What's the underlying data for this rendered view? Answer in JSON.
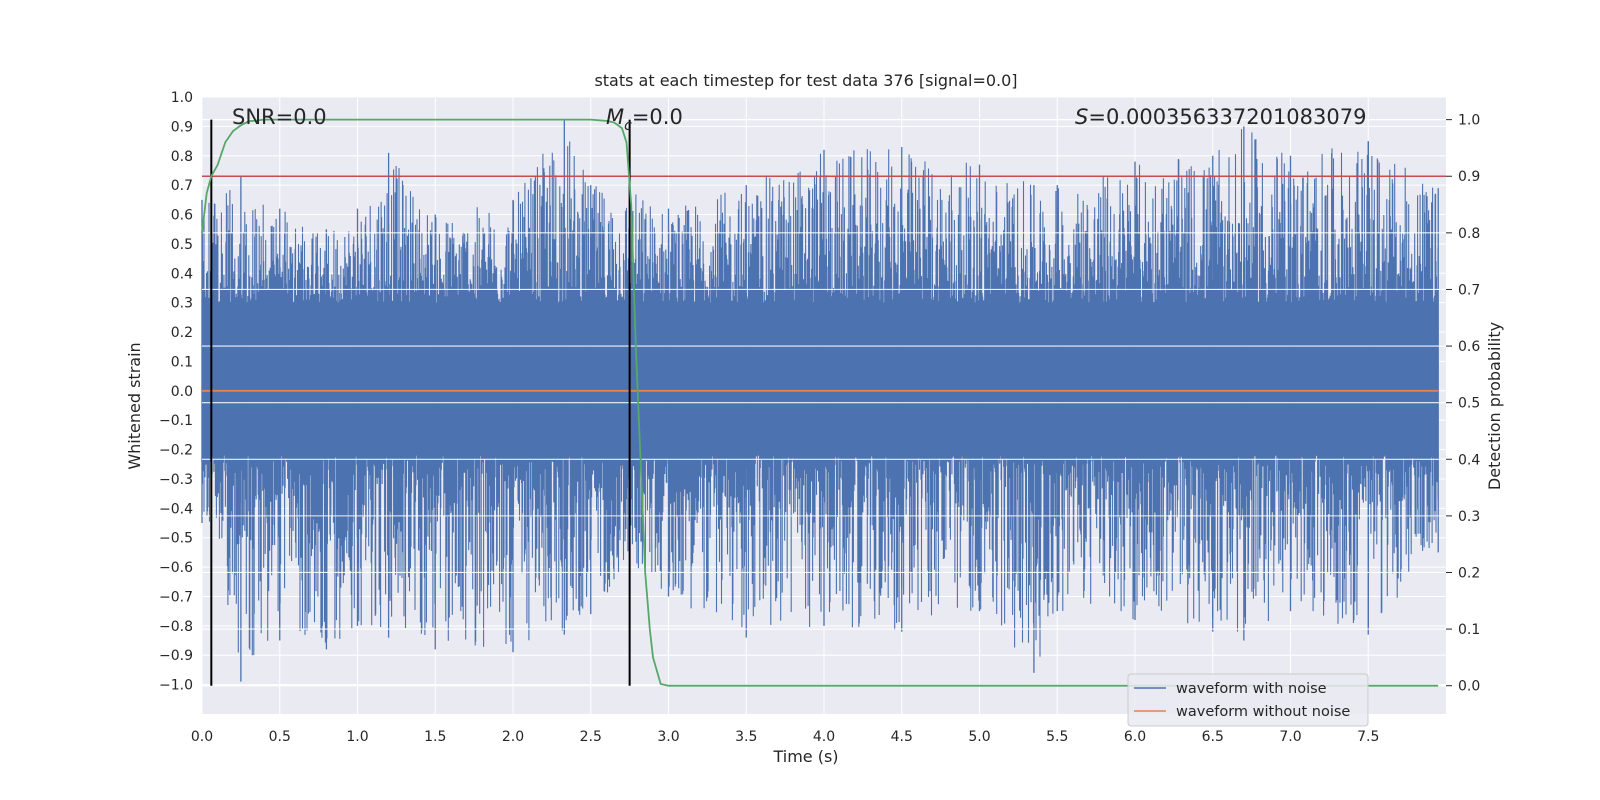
{
  "chart_data": {
    "type": "line",
    "title": "stats at each timestep for test data 376 [signal=0.0]",
    "xlabel": "Time (s)",
    "ylabel_left": "Whitened strain",
    "ylabel_right": "Detection probability",
    "xlim": [
      0.0,
      8.0
    ],
    "ylim_left": [
      -1.1,
      1.0
    ],
    "ylim_right": [
      -0.05,
      1.04
    ],
    "x_ticks": [
      "0.0",
      "0.5",
      "1.0",
      "1.5",
      "2.0",
      "2.5",
      "3.0",
      "3.5",
      "4.0",
      "4.5",
      "5.0",
      "5.5",
      "6.0",
      "6.5",
      "7.0",
      "7.5"
    ],
    "y_ticks_left": [
      "1.0",
      "0.9",
      "0.8",
      "0.7",
      "0.6",
      "0.5",
      "0.4",
      "0.3",
      "0.2",
      "0.1",
      "0.0",
      "−0.1",
      "−0.2",
      "−0.3",
      "−0.4",
      "−0.5",
      "−0.6",
      "−0.7",
      "−0.8",
      "−0.9",
      "−1.0"
    ],
    "y_ticks_right": [
      "1.0",
      "0.9",
      "0.8",
      "0.7",
      "0.6",
      "0.5",
      "0.4",
      "0.3",
      "0.2",
      "0.1",
      "0.0"
    ],
    "grid": true,
    "legend_position": "lower-right",
    "annotations": {
      "snr": "SNR=0.0",
      "mc_symbol": "M",
      "mc_sub": "c",
      "mc_value": "=0.0",
      "s_symbol": "S",
      "s_value": "=0.000356337201083079"
    },
    "vertical_lines_x": [
      0.06,
      2.75
    ],
    "threshold_line": {
      "axis": "right",
      "value": 0.9,
      "color": "#c44e52"
    },
    "series": [
      {
        "name": "waveform with noise",
        "axis": "left",
        "color": "#4c72b0",
        "description_points": "dense noise signal; envelope approx",
        "x": [
          0.0,
          0.06,
          0.25,
          0.5,
          0.8,
          1.0,
          1.2,
          1.5,
          2.0,
          2.33,
          2.5,
          2.75,
          3.0,
          3.5,
          4.0,
          4.5,
          5.0,
          5.35,
          5.5,
          6.0,
          6.5,
          6.7,
          7.0,
          7.5,
          7.95
        ],
        "y_max": [
          0.65,
          0.66,
          0.73,
          0.62,
          0.55,
          0.62,
          0.81,
          0.6,
          0.65,
          0.92,
          0.7,
          0.7,
          0.62,
          0.7,
          0.82,
          0.83,
          0.77,
          0.7,
          0.7,
          0.78,
          0.8,
          0.9,
          0.8,
          0.85,
          0.69
        ],
        "y_min": [
          -0.45,
          -0.45,
          -0.99,
          -0.85,
          -0.88,
          -0.8,
          -0.84,
          -0.88,
          -0.89,
          -0.83,
          -0.76,
          -0.6,
          -0.7,
          -0.84,
          -0.8,
          -0.82,
          -0.75,
          -0.96,
          -0.75,
          -0.78,
          -0.82,
          -0.85,
          -0.75,
          -0.83,
          -0.55
        ]
      },
      {
        "name": "waveform without noise",
        "axis": "left",
        "color": "#dd8452",
        "x": [
          0.0,
          7.95
        ],
        "y": [
          0.0,
          0.0
        ]
      },
      {
        "name": "detection probability",
        "axis": "right",
        "color": "#55a868",
        "x": [
          0.0,
          0.03,
          0.06,
          0.1,
          0.15,
          0.2,
          0.25,
          0.3,
          0.4,
          0.6,
          1.0,
          1.5,
          2.0,
          2.5,
          2.6,
          2.65,
          2.7,
          2.73,
          2.76,
          2.79,
          2.82,
          2.85,
          2.88,
          2.9,
          2.95,
          3.0,
          3.5,
          4.0,
          5.0,
          6.0,
          7.0,
          7.95
        ],
        "y": [
          0.8,
          0.87,
          0.9,
          0.92,
          0.96,
          0.98,
          0.99,
          0.997,
          1.0,
          1.0,
          1.0,
          1.0,
          1.0,
          1.0,
          0.998,
          0.995,
          0.985,
          0.96,
          0.85,
          0.6,
          0.4,
          0.2,
          0.1,
          0.05,
          0.003,
          0.0,
          0.0,
          0.0,
          0.0,
          0.0,
          0.0,
          0.0
        ]
      }
    ]
  }
}
